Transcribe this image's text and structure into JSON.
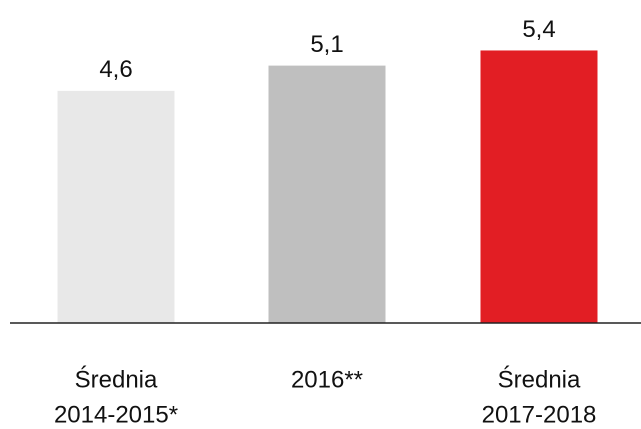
{
  "chart_data": {
    "type": "bar",
    "categories": [
      [
        "Średnia",
        "2014-2015*"
      ],
      [
        "2016**"
      ],
      [
        "Średnia",
        "2017-2018"
      ]
    ],
    "values": [
      4.6,
      5.1,
      5.4
    ],
    "value_labels": [
      "4,6",
      "5,1",
      "5,4"
    ],
    "colors": [
      "#e8e8e8",
      "#bfbfbf",
      "#e21e24"
    ],
    "ylim": [
      0,
      6.4
    ]
  }
}
